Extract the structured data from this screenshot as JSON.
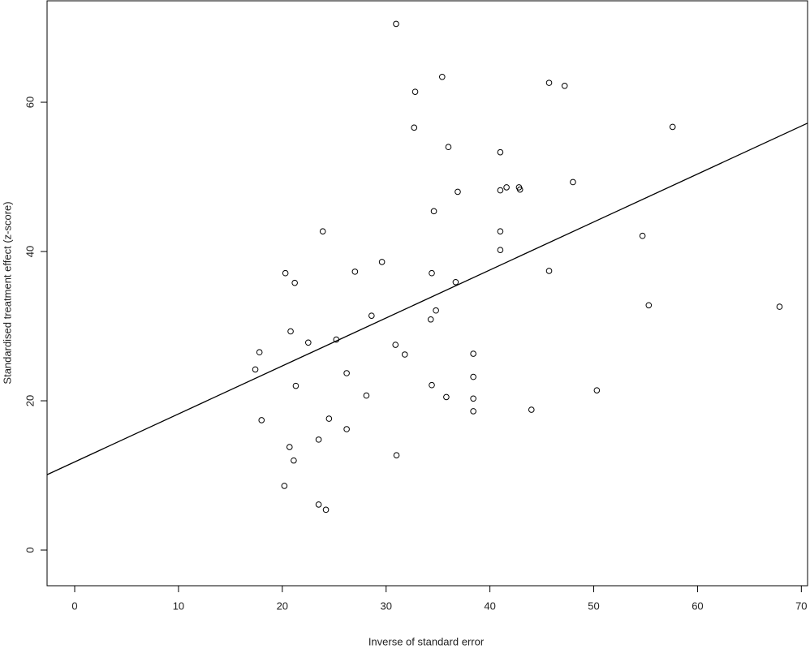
{
  "chart_data": {
    "type": "scatter",
    "x_label": "Inverse of standard error",
    "y_label": "Standardised treatment effect (z-score)",
    "x": [
      30.96,
      35.4,
      32.8,
      45.7,
      47.2,
      32.7,
      57.6,
      36.0,
      41.0,
      48.0,
      42.8,
      42.9,
      41.6,
      41.0,
      36.9,
      34.6,
      23.9,
      41.0,
      54.7,
      41.0,
      29.6,
      20.3,
      27.0,
      34.4,
      45.7,
      21.2,
      36.7,
      55.3,
      67.9,
      34.8,
      28.6,
      34.3,
      20.8,
      25.2,
      22.5,
      30.9,
      17.8,
      31.8,
      38.4,
      17.4,
      26.2,
      38.4,
      21.3,
      34.4,
      28.1,
      35.8,
      38.4,
      50.3,
      44.0,
      38.4,
      18.0,
      24.5,
      26.2,
      23.5,
      20.7,
      31.0,
      21.1,
      20.2,
      23.5,
      24.2
    ],
    "y": [
      70.5,
      63.4,
      61.4,
      62.6,
      62.2,
      56.6,
      56.7,
      54.0,
      53.3,
      49.3,
      48.6,
      48.3,
      48.6,
      48.2,
      48.0,
      45.4,
      42.7,
      42.7,
      42.1,
      40.2,
      38.6,
      37.1,
      37.3,
      37.1,
      37.4,
      35.8,
      35.9,
      32.8,
      32.6,
      32.1,
      31.4,
      30.9,
      29.3,
      28.2,
      27.8,
      27.5,
      26.5,
      26.2,
      26.3,
      24.2,
      23.7,
      23.2,
      22.0,
      22.1,
      20.7,
      20.5,
      20.3,
      21.4,
      18.8,
      18.6,
      17.4,
      17.6,
      16.2,
      14.8,
      13.8,
      12.7,
      12.0,
      8.6,
      6.1,
      5.4
    ],
    "fit_line": {
      "x": [
        -2.66,
        70.6
      ],
      "y": [
        10.1,
        57.2
      ]
    },
    "xlim": [
      -2.66,
      70.6
    ],
    "ylim": [
      -4.78,
      73.7
    ],
    "xticks": [
      0,
      10,
      20,
      30,
      40,
      50,
      60,
      70
    ],
    "yticks": [
      0,
      20,
      40,
      60
    ],
    "color": "#000000"
  }
}
